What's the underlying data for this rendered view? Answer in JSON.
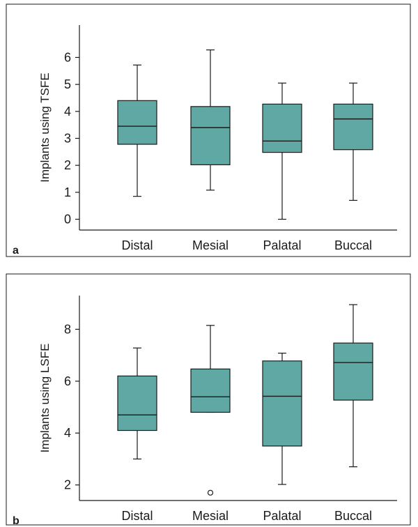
{
  "chart_data": [
    {
      "type": "box",
      "panel_label": "a",
      "categories": [
        "Distal",
        "Mesial",
        "Palatal",
        "Buccal"
      ],
      "ylabel": "Implants using TSFE",
      "xlabel": "",
      "ylim": [
        -0.4,
        7.2
      ],
      "yticks": [
        0,
        1,
        2,
        3,
        4,
        5,
        6
      ],
      "boxes": [
        {
          "min": 0.85,
          "q1": 2.78,
          "median": 3.45,
          "q3": 4.4,
          "max": 5.72
        },
        {
          "min": 1.08,
          "q1": 2.02,
          "median": 3.4,
          "q3": 4.18,
          "max": 6.28
        },
        {
          "min": 0.0,
          "q1": 2.48,
          "median": 2.9,
          "q3": 4.27,
          "max": 5.05
        },
        {
          "min": 0.7,
          "q1": 2.58,
          "median": 3.72,
          "q3": 4.27,
          "max": 5.05
        }
      ],
      "outliers": [],
      "box_color": "#5fa8a3",
      "grid": false
    },
    {
      "type": "box",
      "panel_label": "b",
      "categories": [
        "Distal",
        "Mesial",
        "Palatal",
        "Buccal"
      ],
      "ylabel": "Implants using LSFE",
      "xlabel": "",
      "ylim": [
        1.4,
        9.3
      ],
      "yticks": [
        2,
        4,
        6,
        8
      ],
      "boxes": [
        {
          "min": 3.0,
          "q1": 4.1,
          "median": 4.7,
          "q3": 6.2,
          "max": 7.28
        },
        {
          "min": 4.8,
          "q1": 4.8,
          "median": 5.4,
          "q3": 6.47,
          "max": 8.15
        },
        {
          "min": 2.02,
          "q1": 3.5,
          "median": 5.42,
          "q3": 6.78,
          "max": 7.08
        },
        {
          "min": 2.7,
          "q1": 5.27,
          "median": 6.72,
          "q3": 7.47,
          "max": 8.95
        }
      ],
      "outliers": [
        {
          "category": "Mesial",
          "value": 1.7
        }
      ],
      "box_color": "#5fa8a3",
      "grid": false
    }
  ]
}
